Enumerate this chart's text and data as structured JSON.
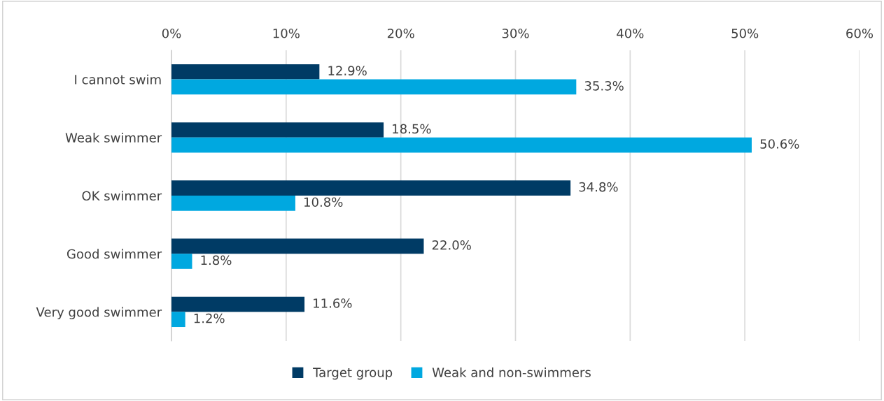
{
  "chart_data": {
    "type": "bar",
    "orientation": "horizontal",
    "categories": [
      "I cannot swim",
      "Weak swimmer",
      "OK swimmer",
      "Good swimmer",
      "Very good swimmer"
    ],
    "series": [
      {
        "name": "Target group",
        "color": "#003b65",
        "values": [
          12.9,
          18.5,
          34.8,
          22.0,
          11.6
        ],
        "value_labels": [
          "12.9%",
          "18.5%",
          "34.8%",
          "22.0%",
          "11.6%"
        ]
      },
      {
        "name": "Weak and non-swimmers",
        "color": "#00a8e0",
        "values": [
          35.3,
          50.6,
          10.8,
          1.8,
          1.2
        ],
        "value_labels": [
          "35.3%",
          "50.6%",
          "10.8%",
          "1.8%",
          "1.2%"
        ]
      }
    ],
    "xlim": [
      0,
      60
    ],
    "xticks": [
      {
        "value": 0,
        "label": "0%"
      },
      {
        "value": 10,
        "label": "10%"
      },
      {
        "value": 20,
        "label": "20%"
      },
      {
        "value": 30,
        "label": "30%"
      },
      {
        "value": 40,
        "label": "40%"
      },
      {
        "value": 50,
        "label": "50%"
      },
      {
        "value": 60,
        "label": "60%"
      }
    ],
    "grid": "x",
    "legend": "bottom"
  }
}
